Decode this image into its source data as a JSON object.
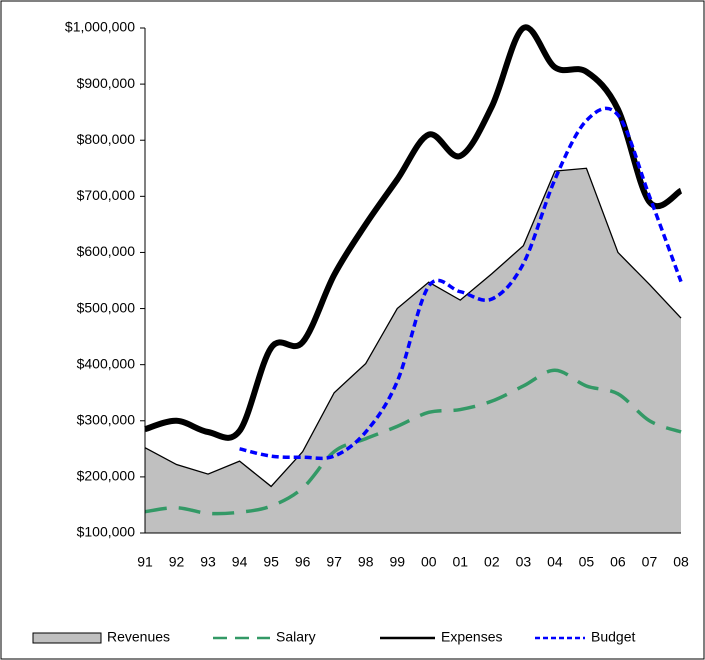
{
  "chart_data": {
    "type": "line",
    "categories": [
      "91",
      "92",
      "93",
      "94",
      "95",
      "96",
      "97",
      "98",
      "99",
      "00",
      "01",
      "02",
      "03",
      "04",
      "05",
      "06",
      "07",
      "08"
    ],
    "series": [
      {
        "name": "Revenues",
        "kind": "area",
        "color": "#c0c0c0",
        "values": [
          252000,
          222000,
          205000,
          228000,
          183000,
          245000,
          350000,
          402000,
          500000,
          547000,
          515000,
          562000,
          612000,
          745000,
          750000,
          600000,
          543000,
          483000
        ]
      },
      {
        "name": "Salary",
        "kind": "line",
        "color": "#339966",
        "dash": "long",
        "values": [
          138000,
          145000,
          135000,
          137000,
          148000,
          180000,
          245000,
          268000,
          290000,
          315000,
          320000,
          335000,
          362000,
          390000,
          362000,
          348000,
          300000,
          280000
        ]
      },
      {
        "name": "Expenses",
        "kind": "line",
        "color": "#000000",
        "values": [
          285000,
          300000,
          280000,
          282000,
          430000,
          440000,
          560000,
          650000,
          730000,
          810000,
          772000,
          860000,
          1000000,
          930000,
          922000,
          855000,
          690000,
          710000
        ]
      },
      {
        "name": "Budget",
        "kind": "line",
        "color": "#0000ff",
        "dash": "short",
        "values": [
          null,
          null,
          null,
          250000,
          237000,
          235000,
          237000,
          280000,
          370000,
          540000,
          530000,
          517000,
          580000,
          730000,
          835000,
          845000,
          700000,
          548000
        ]
      }
    ],
    "ylim": [
      100000,
      1000000
    ],
    "yticks": [
      {
        "value": 100000,
        "label": "$100,000"
      },
      {
        "value": 200000,
        "label": "$200,000"
      },
      {
        "value": 300000,
        "label": "$300,000"
      },
      {
        "value": 400000,
        "label": "$400,000"
      },
      {
        "value": 500000,
        "label": "$500,000"
      },
      {
        "value": 600000,
        "label": "$600,000"
      },
      {
        "value": 700000,
        "label": "$700,000"
      },
      {
        "value": 800000,
        "label": "$800,000"
      },
      {
        "value": 900000,
        "label": "$900,000"
      },
      {
        "value": 1000000,
        "label": "$1,000,000"
      }
    ],
    "legend": "bottom"
  }
}
